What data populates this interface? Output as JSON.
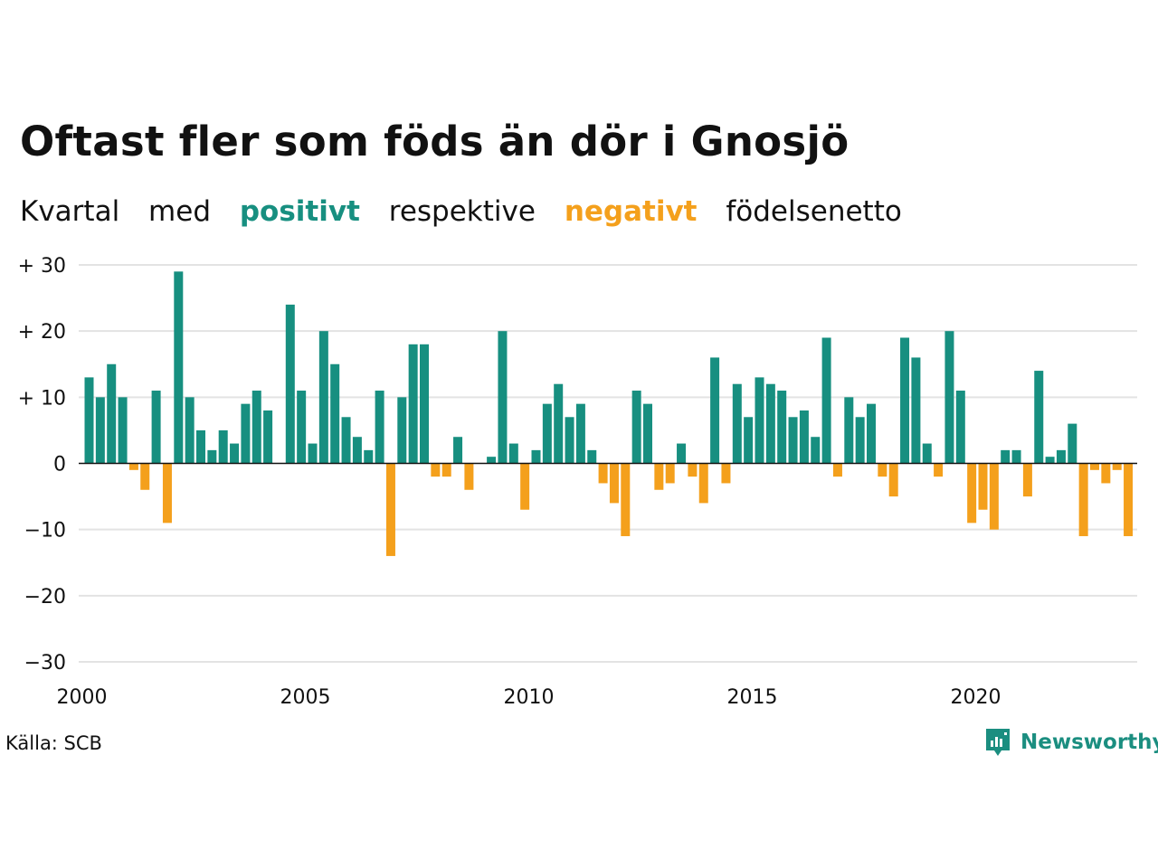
{
  "title": "Oftast fler som föds än dör i Gnosjö",
  "subtitle": {
    "w1": "Kvartal",
    "w2": "med",
    "positive": "positivt",
    "w3": "respektive",
    "negative": "negativt",
    "w4": "födelsenetto"
  },
  "source": "Källa: SCB",
  "logo": {
    "text": "Newsworthy",
    "icon": "newsworthy-chart-bubble-icon"
  },
  "colors": {
    "positive": "#178f80",
    "negative": "#f4a01c",
    "grid": "#e3e3e3",
    "baseline": "#111111",
    "logo": "#1b8e80"
  },
  "chart_data": {
    "type": "bar",
    "x_start": "2000",
    "frequency": "quarterly",
    "ylim": [
      -30,
      30
    ],
    "y_ticks": [
      30,
      20,
      10,
      0,
      -10,
      -20,
      -30
    ],
    "y_tick_labels": [
      "+ 30",
      "+ 20",
      "+ 10",
      "0",
      "−10",
      "−20",
      "−30"
    ],
    "x_tick_labels": [
      "2000",
      "2005",
      "2010",
      "2015",
      "2020"
    ],
    "grid": true,
    "values": [
      13,
      10,
      15,
      10,
      -1,
      -4,
      11,
      -9,
      29,
      10,
      5,
      2,
      5,
      3,
      9,
      11,
      8,
      0,
      24,
      11,
      3,
      20,
      15,
      7,
      4,
      2,
      11,
      -14,
      10,
      18,
      18,
      -2,
      -2,
      4,
      -4,
      0,
      1,
      20,
      3,
      -7,
      2,
      9,
      12,
      7,
      9,
      2,
      -3,
      -6,
      -11,
      11,
      9,
      -4,
      -3,
      3,
      -2,
      -6,
      16,
      -3,
      12,
      7,
      13,
      12,
      11,
      7,
      8,
      4,
      19,
      -2,
      10,
      7,
      9,
      -2,
      -5,
      19,
      16,
      3,
      -2,
      20,
      11,
      -9,
      -7,
      -10,
      2,
      2,
      -5,
      14,
      1,
      2,
      6,
      -11,
      -1,
      -3,
      -1,
      -11
    ]
  }
}
